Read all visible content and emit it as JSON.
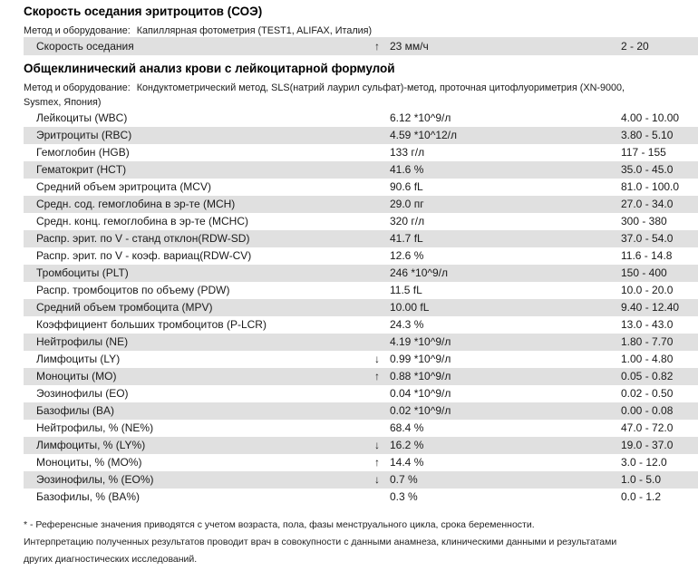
{
  "colors": {
    "stripe": "#e0e0e0",
    "text": "#1a1a1a"
  },
  "esr_section": {
    "title": "Скорость оседания эритроцитов (СОЭ)",
    "method_label": "Метод и оборудование:",
    "method_value": "Капиллярная фотометрия (TEST1, ALIFAX, Италия)",
    "rows": [
      {
        "name": "Скорость оседания",
        "arrow": "↑",
        "value": "23 мм/ч",
        "ref": "2 - 20"
      }
    ]
  },
  "cbc_section": {
    "title": "Общеклинический анализ крови с лейкоцитарной формулой",
    "method_label": "Метод и оборудование:",
    "method_value": "Кондуктометрический метод, SLS(натрий лаурил сульфат)-метод, проточная цитофлуориметрия (XN-9000, Sysmex, Япония)",
    "rows": [
      {
        "name": "Лейкоциты (WBC)",
        "arrow": "",
        "value": "6.12 *10^9/л",
        "ref": "4.00 - 10.00"
      },
      {
        "name": "Эритроциты (RBC)",
        "arrow": "",
        "value": "4.59 *10^12/л",
        "ref": "3.80 - 5.10"
      },
      {
        "name": "Гемоглобин (HGB)",
        "arrow": "",
        "value": "133 г/л",
        "ref": "117 - 155"
      },
      {
        "name": "Гематокрит (HCT)",
        "arrow": "",
        "value": "41.6 %",
        "ref": "35.0 - 45.0"
      },
      {
        "name": "Средний объем эритроцита (MCV)",
        "arrow": "",
        "value": "90.6 fL",
        "ref": "81.0 - 100.0"
      },
      {
        "name": "Средн. сод. гемоглобина в эр-те (MCH)",
        "arrow": "",
        "value": "29.0 пг",
        "ref": "27.0 - 34.0"
      },
      {
        "name": "Средн. конц. гемоглобина в эр-те (MCHC)",
        "arrow": "",
        "value": "320 г/л",
        "ref": "300 - 380"
      },
      {
        "name": "Распр. эрит. по V - станд отклон(RDW-SD)",
        "arrow": "",
        "value": "41.7 fL",
        "ref": "37.0 - 54.0"
      },
      {
        "name": "Распр. эрит. по V - коэф. вариац(RDW-CV)",
        "arrow": "",
        "value": "12.6 %",
        "ref": "11.6 - 14.8"
      },
      {
        "name": "Тромбоциты (PLT)",
        "arrow": "",
        "value": "246 *10^9/л",
        "ref": "150 - 400"
      },
      {
        "name": "Распр. тромбоцитов по объему (PDW)",
        "arrow": "",
        "value": "11.5 fL",
        "ref": "10.0 - 20.0"
      },
      {
        "name": "Средний объем тромбоцита (MPV)",
        "arrow": "",
        "value": "10.00 fL",
        "ref": "9.40 - 12.40"
      },
      {
        "name": "Коэффициент больших тромбоцитов (P-LCR)",
        "arrow": "",
        "value": "24.3 %",
        "ref": "13.0 - 43.0"
      },
      {
        "name": "Нейтрофилы (NE)",
        "arrow": "",
        "value": "4.19 *10^9/л",
        "ref": "1.80 - 7.70"
      },
      {
        "name": "Лимфоциты (LY)",
        "arrow": "↓",
        "value": "0.99 *10^9/л",
        "ref": "1.00 - 4.80"
      },
      {
        "name": "Моноциты (MO)",
        "arrow": "↑",
        "value": "0.88 *10^9/л",
        "ref": "0.05 - 0.82"
      },
      {
        "name": "Эозинофилы (EO)",
        "arrow": "",
        "value": "0.04 *10^9/л",
        "ref": "0.02 - 0.50"
      },
      {
        "name": "Базофилы (BA)",
        "arrow": "",
        "value": "0.02 *10^9/л",
        "ref": "0.00 - 0.08"
      },
      {
        "name": "Нейтрофилы, % (NE%)",
        "arrow": "",
        "value": "68.4 %",
        "ref": "47.0 - 72.0"
      },
      {
        "name": "Лимфоциты, % (LY%)",
        "arrow": "↓",
        "value": "16.2 %",
        "ref": "19.0 - 37.0"
      },
      {
        "name": "Моноциты, % (MO%)",
        "arrow": "↑",
        "value": "14.4 %",
        "ref": "3.0 - 12.0"
      },
      {
        "name": "Эозинофилы, % (EO%)",
        "arrow": "↓",
        "value": "0.7 %",
        "ref": "1.0 - 5.0"
      },
      {
        "name": "Базофилы, % (BA%)",
        "arrow": "",
        "value": "0.3 %",
        "ref": "0.0 - 1.2"
      }
    ]
  },
  "footnotes": {
    "reference_note": "* - Референсные значения приводятся с учетом возраста, пола, фазы менструального цикла, срока беременности.",
    "interpretation_note": "Интерпретацию полученных результатов проводит врач в совокупности с данными анамнеза, клиническими данными и результатами других диагностических исследований."
  }
}
